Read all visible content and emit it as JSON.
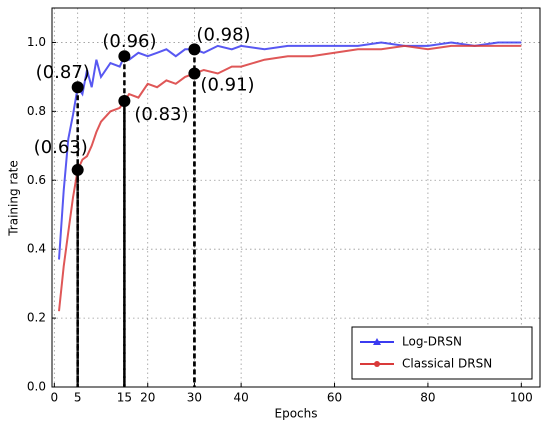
{
  "chart_data": {
    "type": "line",
    "xlabel": "Epochs",
    "ylabel": "Training rate",
    "x": [
      1,
      2,
      3,
      4,
      5,
      6,
      7,
      8,
      9,
      10,
      12,
      14,
      15,
      16,
      18,
      20,
      22,
      24,
      26,
      28,
      30,
      32,
      35,
      38,
      40,
      45,
      50,
      55,
      60,
      65,
      70,
      75,
      80,
      85,
      90,
      95,
      100
    ],
    "series": [
      {
        "name": "Log-DRSN",
        "color": "#3b3bf0",
        "values": [
          0.37,
          0.57,
          0.72,
          0.79,
          0.87,
          0.85,
          0.92,
          0.87,
          0.95,
          0.9,
          0.94,
          0.93,
          0.96,
          0.95,
          0.97,
          0.96,
          0.97,
          0.98,
          0.96,
          0.98,
          0.98,
          0.97,
          0.99,
          0.98,
          0.99,
          0.98,
          0.99,
          0.99,
          0.99,
          0.99,
          1.0,
          0.99,
          0.99,
          1.0,
          0.99,
          1.0,
          1.0
        ]
      },
      {
        "name": "Classical DRSN",
        "color": "#d93a3a",
        "values": [
          0.22,
          0.35,
          0.45,
          0.55,
          0.63,
          0.66,
          0.67,
          0.7,
          0.74,
          0.77,
          0.8,
          0.81,
          0.83,
          0.85,
          0.84,
          0.88,
          0.87,
          0.89,
          0.88,
          0.9,
          0.91,
          0.92,
          0.91,
          0.93,
          0.93,
          0.95,
          0.96,
          0.96,
          0.97,
          0.98,
          0.98,
          0.99,
          0.98,
          0.99,
          0.99,
          0.99,
          0.99
        ]
      }
    ],
    "annotations": [
      {
        "x": 5,
        "y": 0.87,
        "label": "(0.87)",
        "color": "#2323ff"
      },
      {
        "x": 15,
        "y": 0.96,
        "label": "(0.96)",
        "color": "#2323ff"
      },
      {
        "x": 30,
        "y": 0.98,
        "label": "(0.98)",
        "color": "#2323ff"
      },
      {
        "x": 5,
        "y": 0.63,
        "label": "(0.63)",
        "color": "#ff2020"
      },
      {
        "x": 15,
        "y": 0.83,
        "label": "(0.83)",
        "color": "#ff2020"
      },
      {
        "x": 30,
        "y": 0.91,
        "label": "(0.91)",
        "color": "#ff2020"
      }
    ],
    "xlim": [
      -0.5,
      104
    ],
    "ylim": [
      0,
      1.1
    ],
    "xticks": [
      0,
      5,
      15,
      20,
      30,
      40,
      60,
      80,
      100
    ],
    "yticks": [
      {
        "value": 0,
        "label": "0.0"
      },
      0.2,
      0.4,
      0.6,
      0.8,
      {
        "value": 1,
        "label": "1.0"
      }
    ],
    "grid": true,
    "legend": "lower right"
  }
}
